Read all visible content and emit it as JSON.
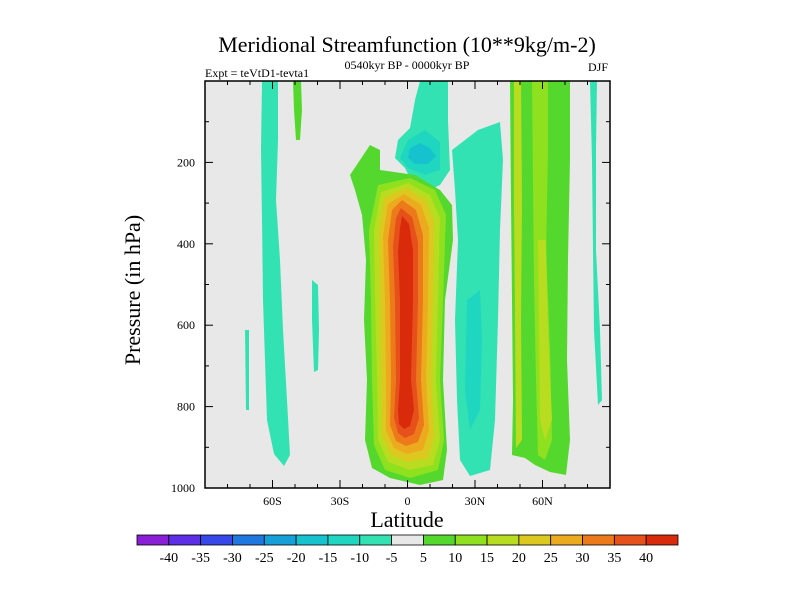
{
  "chart_data": {
    "type": "heatmap",
    "title": "Meridional Streamfunction (10**9kg/m-2)",
    "left_label": "Expt = teVtD1-tevta1",
    "center_label": "0540kyr BP - 0000kyr BP",
    "right_label": "DJF",
    "xlabel": "Latitude",
    "ylabel": "Pressure (in hPa)",
    "xlim": [
      -90,
      90
    ],
    "ylim": [
      1000,
      0
    ],
    "x_ticks": [
      {
        "value": -60,
        "label": "60S"
      },
      {
        "value": -30,
        "label": "30S"
      },
      {
        "value": 0,
        "label": "0"
      },
      {
        "value": 30,
        "label": "30N"
      },
      {
        "value": 60,
        "label": "60N"
      }
    ],
    "y_ticks": [
      200,
      400,
      600,
      800,
      1000
    ],
    "y_tick_labels": [
      "200",
      "400",
      "600",
      "800",
      "1000"
    ],
    "background_color": "#e8e8e8",
    "colorbar": {
      "labels": [
        "-40",
        "-35",
        "-30",
        "-25",
        "-20",
        "-15",
        "-10",
        "-5",
        "5",
        "10",
        "15",
        "20",
        "25",
        "30",
        "35",
        "40"
      ],
      "colors": [
        "#8a1fd8",
        "#5c2ee6",
        "#3747e8",
        "#1f78e0",
        "#17a0d8",
        "#17c2cf",
        "#1fd6c0",
        "#33e2b2",
        "#e8e8e8",
        "#55d82e",
        "#8fe01f",
        "#b8dc1f",
        "#dcc81f",
        "#ecaa1f",
        "#ec7a1a",
        "#e6501a",
        "#d92a0c"
      ]
    },
    "features": [
      {
        "name": "sh-negative-strip",
        "level": -5,
        "lat_range": [
          -83,
          -63
        ],
        "p_range": [
          0,
          950
        ]
      },
      {
        "name": "sh-small-negative",
        "level": -5,
        "lat_range": [
          -48,
          -43
        ],
        "p_range": [
          460,
          800
        ]
      },
      {
        "name": "sh-upper-positive-tail",
        "level": 5,
        "lat_range": [
          -47,
          -45
        ],
        "p_range": [
          0,
          125
        ]
      },
      {
        "name": "tropical-positive-core",
        "level": 40,
        "lat_range": [
          -20,
          12
        ],
        "p_range": [
          160,
          980
        ]
      },
      {
        "name": "tropical-negative-upper",
        "level": -15,
        "lat_range": [
          -5,
          10
        ],
        "p_range": [
          75,
          215
        ]
      },
      {
        "name": "nh-subtropical-negative",
        "level": -10,
        "lat_range": [
          20,
          42
        ],
        "p_range": [
          110,
          975
        ]
      },
      {
        "name": "nh-midlat-positive",
        "level": 20,
        "lat_range": [
          43,
          73
        ],
        "p_range": [
          0,
          965
        ]
      },
      {
        "name": "nh-polar-negative",
        "level": -5,
        "lat_range": [
          82,
          87
        ],
        "p_range": [
          0,
          800
        ]
      }
    ]
  }
}
